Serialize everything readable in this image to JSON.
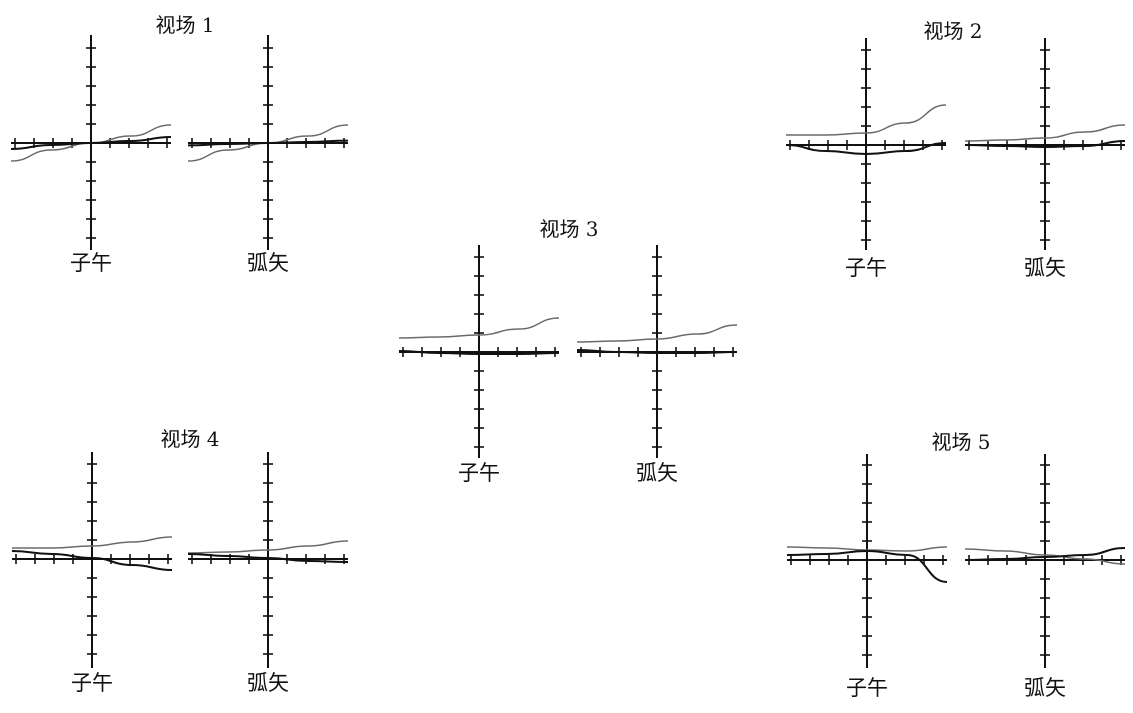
{
  "chart_data": [
    {
      "type": "line",
      "title": "视场 1",
      "subplots": [
        {
          "label": "子午",
          "series": [
            {
              "x": [
                -1,
                -0.5,
                0,
                0.5,
                1
              ],
              "y": [
                -0.9,
                -0.35,
                0,
                0.35,
                0.9
              ]
            },
            {
              "x": [
                -1,
                -0.5,
                0,
                0.5,
                1
              ],
              "y": [
                -0.3,
                -0.1,
                0,
                0.1,
                0.3
              ]
            }
          ]
        },
        {
          "label": "弧矢",
          "series": [
            {
              "x": [
                -1,
                -0.5,
                0,
                0.5,
                1
              ],
              "y": [
                -0.9,
                -0.35,
                0,
                0.35,
                0.9
              ]
            },
            {
              "x": [
                -1,
                -0.5,
                0,
                0.5,
                1
              ],
              "y": [
                -0.12,
                -0.05,
                0,
                0.05,
                0.12
              ]
            }
          ]
        }
      ]
    },
    {
      "type": "line",
      "title": "视场 2",
      "subplots": [
        {
          "label": "子午",
          "series": [
            {
              "x": [
                -1,
                -0.5,
                0,
                0.5,
                1
              ],
              "y": [
                0.5,
                0.5,
                0.6,
                1.1,
                2.0
              ]
            },
            {
              "x": [
                -1,
                -0.5,
                0,
                0.5,
                1
              ],
              "y": [
                0.0,
                -0.3,
                -0.45,
                -0.3,
                0.1
              ]
            }
          ]
        },
        {
          "label": "弧矢",
          "series": [
            {
              "x": [
                -1,
                -0.5,
                0,
                0.5,
                1
              ],
              "y": [
                0.2,
                0.25,
                0.35,
                0.65,
                1.0
              ]
            },
            {
              "x": [
                -1,
                -0.5,
                0,
                0.5,
                1
              ],
              "y": [
                0.0,
                -0.05,
                -0.1,
                -0.05,
                0.2
              ]
            }
          ]
        }
      ]
    },
    {
      "type": "line",
      "title": "视场 3",
      "subplots": [
        {
          "label": "子午",
          "series": [
            {
              "x": [
                -1,
                -0.5,
                0,
                0.5,
                1
              ],
              "y": [
                0.7,
                0.75,
                0.85,
                1.15,
                1.7
              ]
            },
            {
              "x": [
                -1,
                -0.5,
                0,
                0.5,
                1
              ],
              "y": [
                0.05,
                -0.05,
                -0.1,
                -0.1,
                -0.05
              ]
            }
          ]
        },
        {
          "label": "弧矢",
          "series": [
            {
              "x": [
                -1,
                -0.5,
                0,
                0.5,
                1
              ],
              "y": [
                0.5,
                0.55,
                0.65,
                0.9,
                1.35
              ]
            },
            {
              "x": [
                -1,
                -0.5,
                0,
                0.5,
                1
              ],
              "y": [
                0.1,
                0.0,
                -0.05,
                -0.05,
                0.0
              ]
            }
          ]
        }
      ]
    },
    {
      "type": "line",
      "title": "视场 4",
      "subplots": [
        {
          "label": "子午",
          "series": [
            {
              "x": [
                -1,
                -0.5,
                0,
                0.5,
                1
              ],
              "y": [
                0.55,
                0.55,
                0.65,
                0.85,
                1.1
              ]
            },
            {
              "x": [
                -1,
                -0.5,
                0,
                0.5,
                1
              ],
              "y": [
                0.4,
                0.25,
                0.05,
                -0.3,
                -0.55
              ]
            }
          ]
        },
        {
          "label": "弧矢",
          "series": [
            {
              "x": [
                -1,
                -0.5,
                0,
                0.5,
                1
              ],
              "y": [
                0.3,
                0.35,
                0.45,
                0.65,
                0.9
              ]
            },
            {
              "x": [
                -1,
                -0.5,
                0,
                0.5,
                1
              ],
              "y": [
                0.25,
                0.15,
                0.05,
                -0.1,
                -0.15
              ]
            }
          ]
        }
      ]
    },
    {
      "type": "line",
      "title": "视场 5",
      "subplots": [
        {
          "label": "子午",
          "series": [
            {
              "x": [
                -1,
                -0.5,
                0,
                0.5,
                1
              ],
              "y": [
                0.65,
                0.6,
                0.5,
                0.45,
                0.65
              ]
            },
            {
              "x": [
                -1,
                -0.5,
                0,
                0.5,
                1
              ],
              "y": [
                0.25,
                0.3,
                0.45,
                0.25,
                -1.1
              ]
            }
          ]
        },
        {
          "label": "弧矢",
          "series": [
            {
              "x": [
                -1,
                -0.5,
                0,
                0.5,
                1
              ],
              "y": [
                0.55,
                0.45,
                0.25,
                0.05,
                -0.2
              ]
            },
            {
              "x": [
                -1,
                -0.5,
                0,
                0.5,
                1
              ],
              "y": [
                0.0,
                0.05,
                0.15,
                0.25,
                0.6
              ]
            }
          ]
        }
      ]
    }
  ]
}
